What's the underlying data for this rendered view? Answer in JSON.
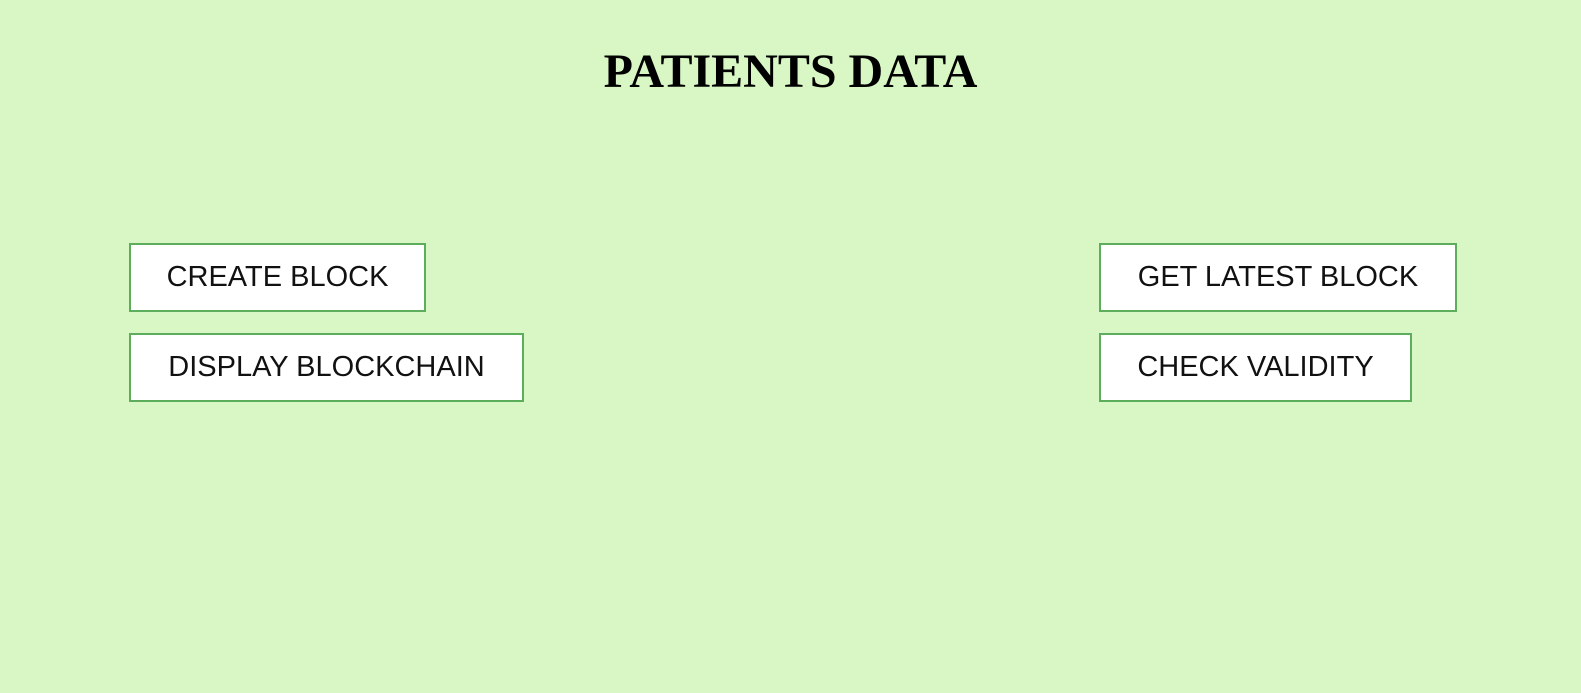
{
  "header": {
    "title": "PATIENTS DATA"
  },
  "actions": {
    "create_block": "CREATE BLOCK",
    "display_blockchain": "DISPLAY BLOCKCHAIN",
    "get_latest_block": "GET LATEST BLOCK",
    "check_validity": "CHECK VALIDITY"
  },
  "colors": {
    "background": "#d9f7c4",
    "button_border": "#5cae5c",
    "button_background": "#ffffff"
  }
}
